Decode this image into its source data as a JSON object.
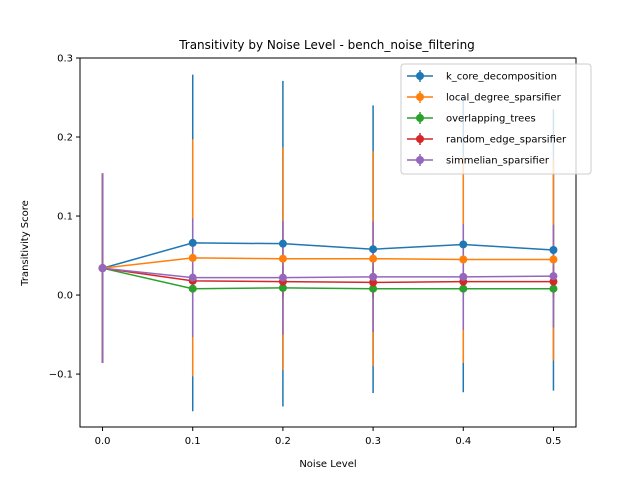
{
  "chart_data": {
    "type": "line",
    "title": "Transitivity by Noise Level - bench_noise_filtering",
    "xlabel": "Noise Level",
    "ylabel": "Transitivity Score",
    "x": [
      0.0,
      0.1,
      0.2,
      0.3,
      0.4,
      0.5
    ],
    "x_ticks": [
      "0.0",
      "0.1",
      "0.2",
      "0.3",
      "0.4",
      "0.5"
    ],
    "y_ticks": [
      "−0.1",
      "0.0",
      "0.1",
      "0.2",
      "0.3"
    ],
    "y_tick_values": [
      -0.1,
      0.0,
      0.1,
      0.2,
      0.3
    ],
    "xlim": [
      -0.025,
      0.525
    ],
    "ylim": [
      -0.167,
      0.3
    ],
    "grid": false,
    "legend_position": "upper right",
    "series": [
      {
        "name": "k_core_decomposition",
        "color": "#1f77b4",
        "values": [
          0.034,
          0.066,
          0.065,
          0.058,
          0.064,
          0.057
        ],
        "errors": [
          0.12,
          0.213,
          0.206,
          0.182,
          0.187,
          0.178
        ]
      },
      {
        "name": "local_degree_sparsifier",
        "color": "#ff7f0e",
        "values": [
          0.034,
          0.047,
          0.046,
          0.046,
          0.045,
          0.045
        ],
        "errors": [
          0.12,
          0.15,
          0.141,
          0.136,
          0.131,
          0.128
        ]
      },
      {
        "name": "overlapping_trees",
        "color": "#2ca02c",
        "values": [
          0.034,
          0.008,
          0.009,
          0.008,
          0.008,
          0.008
        ],
        "errors": [
          0.12,
          0.01,
          0.01,
          0.01,
          0.01,
          0.01
        ]
      },
      {
        "name": "random_edge_sparsifier",
        "color": "#d62728",
        "values": [
          0.034,
          0.018,
          0.017,
          0.016,
          0.017,
          0.017
        ],
        "errors": [
          0.12,
          0.02,
          0.02,
          0.02,
          0.02,
          0.02
        ]
      },
      {
        "name": "simmelian_sparsifier",
        "color": "#9467bd",
        "values": [
          0.034,
          0.022,
          0.022,
          0.023,
          0.023,
          0.024
        ],
        "errors": [
          0.12,
          0.075,
          0.072,
          0.07,
          0.067,
          0.065
        ]
      }
    ]
  }
}
